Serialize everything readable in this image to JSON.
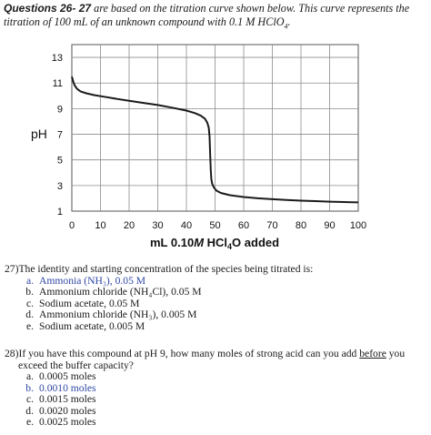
{
  "intro": {
    "qnum": "Questions 26- 27",
    "text_a": " are based on the titration curve shown below. This curve represents the",
    "text_b": "titration of 100 mL of an unknown compound with 0.1 M HClO",
    "sub": "4",
    "end": "."
  },
  "chart_data": {
    "type": "line",
    "ylabel": "pH",
    "xlabel_parts": {
      "a": "mL 0.10",
      "b": "M",
      "c": " HCl",
      "sub": "4",
      "d": "O  added"
    },
    "x_ticks": [
      "0",
      "10",
      "20",
      "30",
      "40",
      "50",
      "60",
      "70",
      "80",
      "90",
      "100"
    ],
    "y_ticks": [
      "1",
      "3",
      "5",
      "7",
      "9",
      "11",
      "13"
    ],
    "xlim": [
      0,
      100
    ],
    "ylim": [
      1,
      14
    ],
    "grid": true,
    "series": [
      {
        "color": "#1a1a1a",
        "x": [
          0,
          0.5,
          1,
          1.8,
          3,
          5,
          8,
          12,
          16,
          20,
          25,
          30,
          35,
          40,
          43,
          45,
          46.5,
          47.3,
          47.8,
          48.1,
          48.3,
          48.5,
          48.7,
          49.0,
          49.6,
          50.5,
          52,
          55,
          60,
          65,
          70,
          75,
          80,
          85,
          90,
          95,
          100
        ],
        "y": [
          11.5,
          11.1,
          10.8,
          10.55,
          10.35,
          10.2,
          10.05,
          9.9,
          9.75,
          9.62,
          9.45,
          9.28,
          9.08,
          8.85,
          8.65,
          8.45,
          8.2,
          7.9,
          7.5,
          6.8,
          5.5,
          4.2,
          3.5,
          3.15,
          2.85,
          2.6,
          2.42,
          2.25,
          2.1,
          2.0,
          1.93,
          1.87,
          1.82,
          1.78,
          1.74,
          1.71,
          1.68
        ]
      }
    ]
  },
  "q27": {
    "stem": "27)The identity and starting concentration of the species being titrated is:",
    "options": [
      {
        "letter": "a.",
        "text": "Ammonia (NH₃), 0.05 M",
        "selected": true
      },
      {
        "letter": "b.",
        "text": "Ammonium chloride (NH₄Cl), 0.05 M",
        "selected": false
      },
      {
        "letter": "c.",
        "text": "Sodium acetate, 0.05 M",
        "selected": false
      },
      {
        "letter": "d.",
        "text": "Ammonium chloride (NH₃), 0.005 M",
        "selected": false
      },
      {
        "letter": "e.",
        "text": "Sodium acetate, 0.005 M",
        "selected": false
      }
    ]
  },
  "q28": {
    "stem_a": "28)If you have this compound at pH 9, how many moles of strong acid can you add ",
    "stem_u": "before",
    "stem_b": " you",
    "stem_c": "exceed the buffer capacity?",
    "options": [
      {
        "letter": "a.",
        "text": "0.0005 moles",
        "selected": false
      },
      {
        "letter": "b.",
        "text": "0.0010 moles",
        "selected": true
      },
      {
        "letter": "c.",
        "text": "0.0015 moles",
        "selected": false
      },
      {
        "letter": "d.",
        "text": "0.0020 moles",
        "selected": false
      },
      {
        "letter": "e.",
        "text": "0.0025 moles",
        "selected": false
      }
    ]
  },
  "colors": {
    "selected": "#2f47a6",
    "curve": "#1a1a1a",
    "grid": "#8c8c8c"
  }
}
